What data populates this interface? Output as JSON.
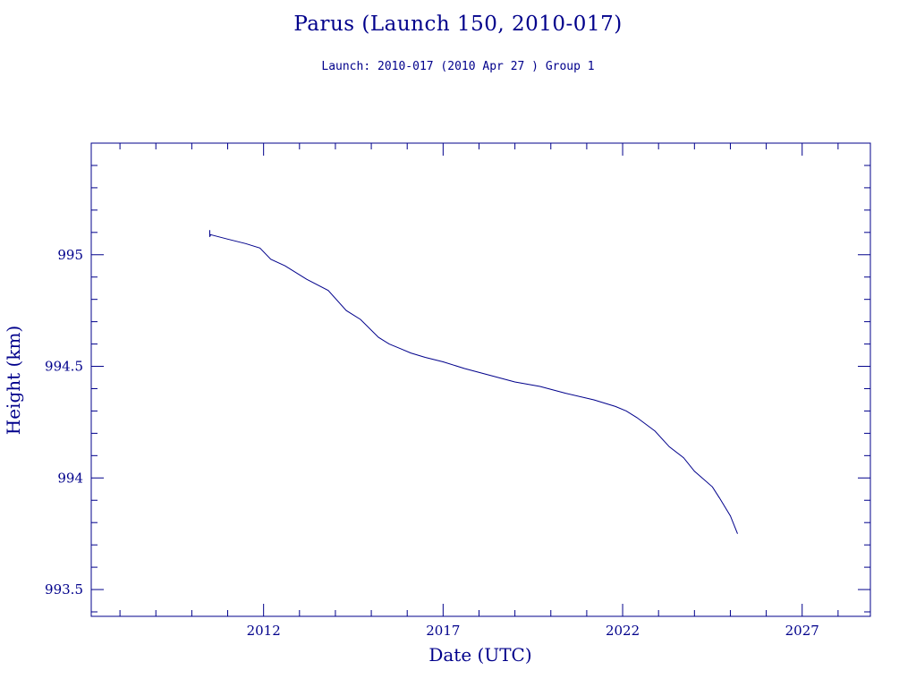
{
  "chart_data": {
    "type": "line",
    "title": "Parus (Launch 150, 2010-017)",
    "subtitle": "Launch: 2010-017  (2010 Apr 27 )  Group 1",
    "xlabel": "Date (UTC)",
    "ylabel": "Height (km)",
    "xlim": [
      2007.2,
      2028.9
    ],
    "ylim": [
      993.38,
      995.5
    ],
    "x_ticks": [
      2012,
      2017,
      2022,
      2027
    ],
    "x_tick_labels": [
      "2012",
      "2017",
      "2022",
      "2027"
    ],
    "y_ticks": [
      993.5,
      994,
      994.5,
      995
    ],
    "y_tick_labels": [
      "993.5",
      "994",
      "994.5",
      "995"
    ],
    "grid": false,
    "color": "#00008b",
    "series": [
      {
        "x": [
          2010.5,
          2010.5,
          2010.52,
          2011.0,
          2011.5,
          2011.9,
          2012.2,
          2012.6,
          2013.2,
          2013.8,
          2014.3,
          2014.7,
          2015.2,
          2015.5,
          2015.8,
          2016.1,
          2016.5,
          2017.0,
          2017.6,
          2018.3,
          2019.0,
          2019.7,
          2020.4,
          2021.2,
          2021.8,
          2022.1,
          2022.4,
          2022.9,
          2023.3,
          2023.7,
          2024.0,
          2024.5,
          2024.7,
          2025.0,
          2025.2
        ],
        "y": [
          995.11,
          995.08,
          995.09,
          995.07,
          995.05,
          995.03,
          994.98,
          994.95,
          994.89,
          994.84,
          994.75,
          994.71,
          994.63,
          994.6,
          994.58,
          994.56,
          994.54,
          994.52,
          994.49,
          994.46,
          994.43,
          994.41,
          994.38,
          994.35,
          994.32,
          994.3,
          994.27,
          994.21,
          994.14,
          994.09,
          994.03,
          993.96,
          993.91,
          993.83,
          993.75
        ]
      }
    ]
  }
}
